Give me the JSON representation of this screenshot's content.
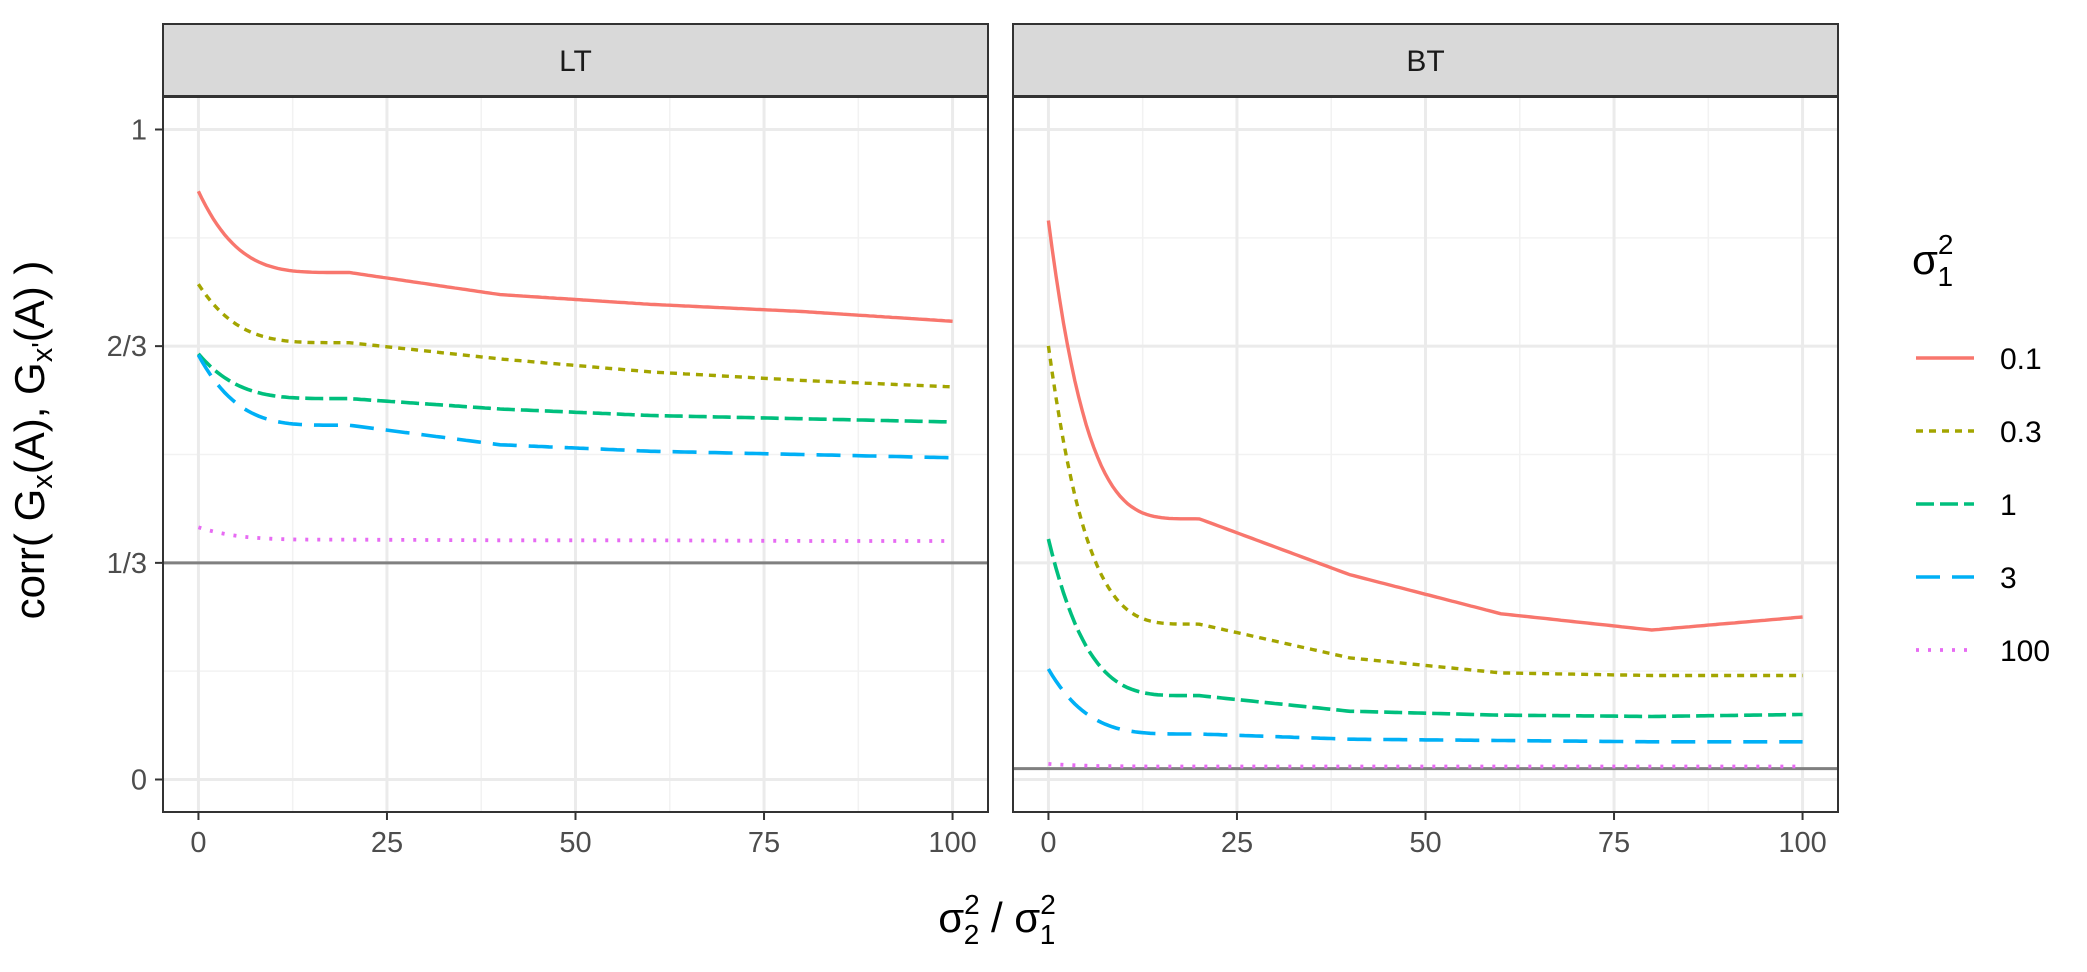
{
  "chart_data": {
    "type": "line",
    "facets": [
      {
        "label": "LT",
        "reference_line": 0.3333,
        "series": [
          {
            "name": "0.1",
            "values": [
              0.905,
              0.78,
              0.746,
              0.731,
              0.72,
              0.705
            ]
          },
          {
            "name": "0.3",
            "values": [
              0.762,
              0.672,
              0.647,
              0.627,
              0.614,
              0.604
            ]
          },
          {
            "name": "1",
            "values": [
              0.655,
              0.586,
              0.57,
              0.56,
              0.555,
              0.55
            ]
          },
          {
            "name": "3",
            "values": [
              0.653,
              0.545,
              0.515,
              0.505,
              0.5,
              0.495
            ]
          },
          {
            "name": "100",
            "values": [
              0.388,
              0.369,
              0.368,
              0.368,
              0.367,
              0.367
            ]
          }
        ]
      },
      {
        "label": "BT",
        "reference_line": 0.0167,
        "series": [
          {
            "name": "0.1",
            "values": [
              0.86,
              0.401,
              0.315,
              0.255,
              0.23,
              0.25
            ]
          },
          {
            "name": "0.3",
            "values": [
              0.667,
              0.239,
              0.187,
              0.164,
              0.16,
              0.16
            ]
          },
          {
            "name": "1",
            "values": [
              0.37,
              0.129,
              0.105,
              0.099,
              0.097,
              0.1
            ]
          },
          {
            "name": "3",
            "values": [
              0.17,
              0.07,
              0.062,
              0.06,
              0.058,
              0.058
            ]
          },
          {
            "name": "100",
            "values": [
              0.024,
              0.02,
              0.02,
              0.02,
              0.02,
              0.02
            ]
          }
        ]
      }
    ],
    "x_ticks": [
      0,
      25,
      50,
      75,
      100
    ],
    "x_tick_labels": [
      "0",
      "25",
      "50",
      "75",
      "100"
    ],
    "xlim": [
      -4.7,
      104.7
    ],
    "y_ticks": [
      0,
      0.3333,
      0.6667,
      1
    ],
    "y_tick_labels": [
      "0",
      "1/3",
      "2/3",
      "1"
    ],
    "ylim": [
      -0.05,
      1.05
    ],
    "ylabel": "corr( G_x(A), G_x'(A) )",
    "xlabel": "σ_2^2 / σ_1^2",
    "legend": {
      "title": "σ_1^2",
      "position": "right",
      "entries": [
        "0.1",
        "0.3",
        "1",
        "3",
        "100"
      ]
    },
    "colors": {
      "0.1": "#F8766D",
      "0.3": "#A3A500",
      "1": "#00BF7D",
      "3": "#00B0F6",
      "100": "#E76BF3"
    }
  },
  "text": {
    "ylabel_main": "corr( G",
    "ylabel_sub1": "x",
    "ylabel_mid": "(A), G",
    "ylabel_sub2": "x'",
    "ylabel_end": "(A) )",
    "xlabel_num": "σ",
    "xlabel_num_sub": "2",
    "xlabel_num_sup": "2",
    "xlabel_sep": " / ",
    "xlabel_den": "σ",
    "xlabel_den_sub": "1",
    "xlabel_den_sup": "2",
    "legend_sigma": "σ",
    "legend_sub": "1",
    "legend_sup": "2"
  }
}
